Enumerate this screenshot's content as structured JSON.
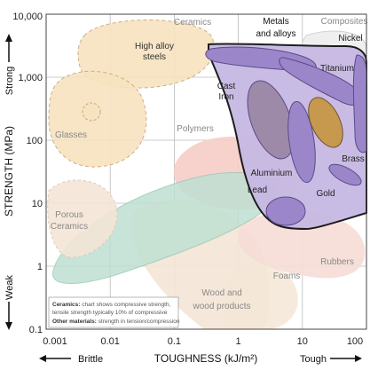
{
  "chart_data": {
    "type": "scatter",
    "title": "",
    "x_axis": {
      "label": "TOUGHNESS (kJ/m²)",
      "scale": "log",
      "range": [
        0.001,
        100
      ],
      "ticks": [
        "0.001",
        "0.01",
        "0.1",
        "1",
        "10",
        "100"
      ],
      "tick_values": [
        0.001,
        0.01,
        0.1,
        1,
        10,
        100
      ],
      "low_label": "Brittle",
      "high_label": "Tough"
    },
    "y_axis": {
      "label": "STRENGTH (MPa)",
      "scale": "log",
      "range": [
        0.1,
        10000
      ],
      "ticks": [
        "0.1",
        "1",
        "10",
        "100",
        "1,000",
        "10,000"
      ],
      "tick_values": [
        0.1,
        1,
        10,
        100,
        1000,
        10000
      ],
      "low_label": "Weak",
      "high_label": "Strong"
    },
    "grid": true,
    "regions": [
      {
        "name": "Ceramics",
        "x_range": [
          0.01,
          0.3
        ],
        "y_range": [
          200,
          5000
        ],
        "color": "#f7e3c0"
      },
      {
        "name": "High alloy steels",
        "x_range": [
          0.08,
          0.3
        ],
        "y_range": [
          1000,
          4000
        ],
        "color": "#f7e3c0"
      },
      {
        "name": "Glasses",
        "x_range": [
          0.0012,
          0.008
        ],
        "y_range": [
          30,
          1000
        ],
        "color": "#f7e3c0"
      },
      {
        "name": "Porous Ceramics",
        "x_range": [
          0.001,
          0.02
        ],
        "y_range": [
          1,
          20
        ],
        "color": "#f4e6d6"
      },
      {
        "name": "Polymers",
        "x_range": [
          0.2,
          10
        ],
        "y_range": [
          10,
          100
        ],
        "color": "#f6d3cf"
      },
      {
        "name": "Composites",
        "x_range": [
          10,
          100
        ],
        "y_range": [
          100,
          3000
        ],
        "color": "#eeeeee"
      },
      {
        "name": "Metals and alloys",
        "x_range": [
          0.4,
          100
        ],
        "y_range": [
          5,
          3000
        ],
        "color": "#c7b9e3"
      },
      {
        "name": "Titanium",
        "x_range": [
          10,
          80
        ],
        "y_range": [
          300,
          2000
        ],
        "color": "#9a86c9"
      },
      {
        "name": "Nickel",
        "x_range": [
          70,
          100
        ],
        "y_range": [
          100,
          2000
        ],
        "color": "#9a86c9"
      },
      {
        "name": "Cast Iron",
        "x_range": [
          1,
          5
        ],
        "y_range": [
          100,
          1000
        ],
        "color": "#9d8aa8"
      },
      {
        "name": "Aluminium",
        "x_range": [
          5,
          20
        ],
        "y_range": [
          30,
          500
        ],
        "color": "#9a86c9"
      },
      {
        "name": "Brass",
        "x_range": [
          20,
          60
        ],
        "y_range": [
          100,
          1000
        ],
        "color": "#c7994e"
      },
      {
        "name": "Gold",
        "x_range": [
          40,
          100
        ],
        "y_range": [
          20,
          50
        ],
        "color": "#9a86c9"
      },
      {
        "name": "Lead",
        "x_range": [
          3,
          10
        ],
        "y_range": [
          5,
          20
        ],
        "color": "#9a86c9"
      },
      {
        "name": "Rubbers",
        "x_range": [
          5,
          100
        ],
        "y_range": [
          1,
          10
        ],
        "color": "#f4e6d6"
      },
      {
        "name": "Foams",
        "x_range": [
          0.1,
          3
        ],
        "y_range": [
          0.1,
          2
        ],
        "color": "#f4e6d6"
      },
      {
        "name": "Wood and wood products",
        "x_range": [
          0.01,
          3
        ],
        "y_range": [
          0.1,
          30
        ],
        "color": "#f4e6d6"
      },
      {
        "name": "Green family",
        "x_range": [
          0.003,
          3
        ],
        "y_range": [
          0.5,
          50
        ],
        "color": "#bfe0d2"
      }
    ],
    "labels": {
      "ceramics": "Ceramics",
      "high_alloy": [
        "High alloy",
        "steels"
      ],
      "glasses": "Glasses",
      "porous": [
        "Porous",
        "Ceramics"
      ],
      "polymers": "Polymers",
      "composites": "Composites",
      "metals": [
        "Metals",
        "and alloys"
      ],
      "nickel": "Nickel",
      "titanium": "Titanium",
      "cast_iron": [
        "Cast",
        "Iron"
      ],
      "brass": "Brass",
      "aluminium": "Aluminium",
      "gold": "Gold",
      "lead": "Lead",
      "rubbers": "Rubbers",
      "foams": "Foams",
      "wood": [
        "Wood and",
        "wood products"
      ]
    },
    "notes": [
      {
        "bold": "Ceramics:",
        "text": " chart shows compressive strength,"
      },
      {
        "bold": "",
        "text": "tensile strength typically 10% of compressive"
      },
      {
        "bold": "Other materials:",
        "text": " strength in tension/compression"
      }
    ]
  }
}
